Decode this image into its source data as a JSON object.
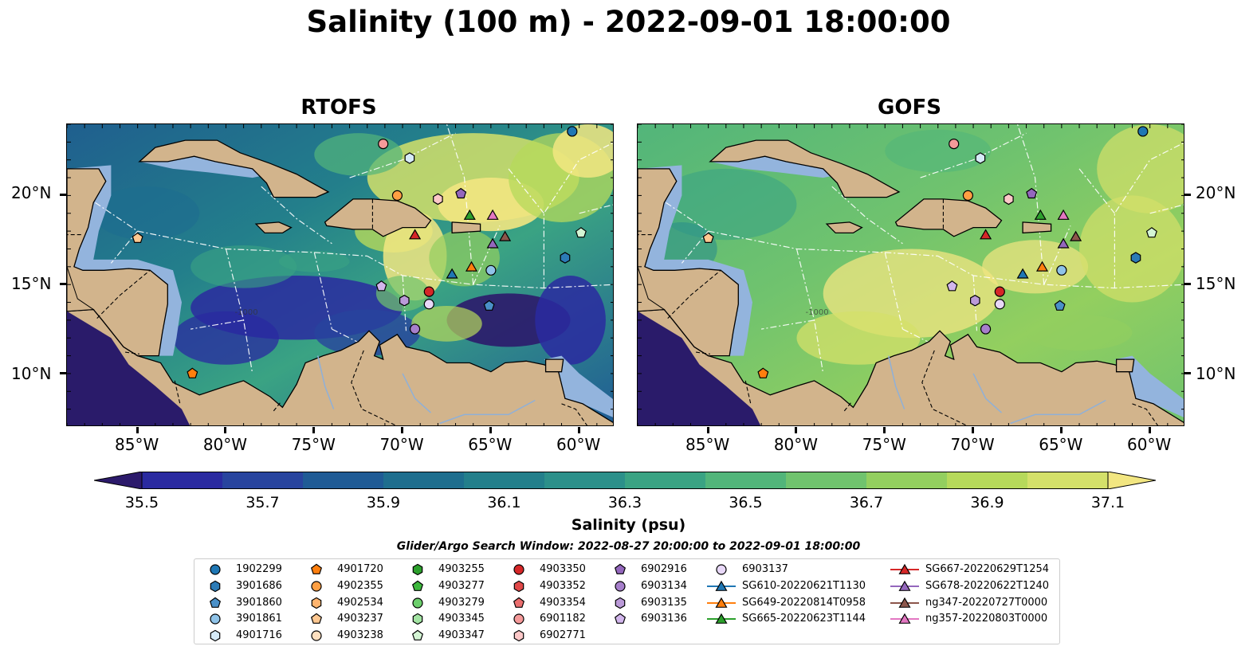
{
  "title": "Salinity (100 m) - 2022-09-01 18:00:00",
  "panels": [
    {
      "title": "RTOFS",
      "kind": "rtofs"
    },
    {
      "title": "GOFS",
      "kind": "gofs"
    }
  ],
  "lon_ticks": [
    "85°W",
    "80°W",
    "75°W",
    "70°W",
    "65°W",
    "60°W"
  ],
  "lat_ticks": [
    "20°N",
    "15°N",
    "10°N"
  ],
  "colorbar": {
    "title": "Salinity (psu)",
    "ticks": [
      "35.5",
      "35.7",
      "35.9",
      "36.1",
      "36.3",
      "36.5",
      "36.7",
      "36.9",
      "37.1"
    ],
    "colors": [
      "#2c1a6b",
      "#2a2aa0",
      "#28449e",
      "#1f5b95",
      "#1e6e8e",
      "#237f8b",
      "#2c908a",
      "#3aa383",
      "#52b57a",
      "#70c36e",
      "#93cf5f",
      "#b6d95b",
      "#d4e06a",
      "#f2e681"
    ]
  },
  "search_window": "Glider/Argo Search Window: 2022-08-27 20:00:00 to 2022-09-01 18:00:00",
  "legend": [
    {
      "label": "1902299",
      "marker": "circle",
      "color": "#1f77b4"
    },
    {
      "label": "3901686",
      "marker": "hexagon",
      "color": "#2c7bb6"
    },
    {
      "label": "3901860",
      "marker": "pentagon",
      "color": "#4a90c8"
    },
    {
      "label": "3901861",
      "marker": "circle",
      "color": "#8fc3e8"
    },
    {
      "label": "4901716",
      "marker": "hexagon",
      "color": "#d6ebf8"
    },
    {
      "label": "4901720",
      "marker": "pentagon",
      "color": "#ff7f0e"
    },
    {
      "label": "4902355",
      "marker": "circle",
      "color": "#ff9f43"
    },
    {
      "label": "4902534",
      "marker": "hexagon",
      "color": "#ffb46e"
    },
    {
      "label": "4903237",
      "marker": "pentagon",
      "color": "#ffc891"
    },
    {
      "label": "4903238",
      "marker": "circle",
      "color": "#ffe0c0"
    },
    {
      "label": "4903255",
      "marker": "hexagon",
      "color": "#2ca02c"
    },
    {
      "label": "4903277",
      "marker": "pentagon",
      "color": "#3db83d"
    },
    {
      "label": "4903279",
      "marker": "circle",
      "color": "#6ccf6c"
    },
    {
      "label": "4903345",
      "marker": "hexagon",
      "color": "#a3e4a3"
    },
    {
      "label": "4903347",
      "marker": "pentagon",
      "color": "#d4f5d4"
    },
    {
      "label": "4903350",
      "marker": "circle",
      "color": "#d62728"
    },
    {
      "label": "4903352",
      "marker": "hexagon",
      "color": "#e04848"
    },
    {
      "label": "4903354",
      "marker": "pentagon",
      "color": "#ea6e6e"
    },
    {
      "label": "6901182",
      "marker": "circle",
      "color": "#f59a9a"
    },
    {
      "label": "6902771",
      "marker": "hexagon",
      "color": "#fcc8c8"
    },
    {
      "label": "6902916",
      "marker": "pentagon",
      "color": "#9467bd"
    },
    {
      "label": "6903134",
      "marker": "circle",
      "color": "#a67fcb"
    },
    {
      "label": "6903135",
      "marker": "hexagon",
      "color": "#bb9ad8"
    },
    {
      "label": "6903136",
      "marker": "pentagon",
      "color": "#d2b6ec"
    },
    {
      "label": "6903137",
      "marker": "circle",
      "color": "#e8d8f8"
    },
    {
      "label": "SG610-20220621T1130",
      "marker": "triangle",
      "color": "#1f77b4"
    },
    {
      "label": "SG649-20220814T0958",
      "marker": "triangle",
      "color": "#ff7f0e"
    },
    {
      "label": "SG665-20220623T1144",
      "marker": "triangle",
      "color": "#2ca02c"
    },
    {
      "label": "SG667-20220629T1254",
      "marker": "triangle",
      "color": "#d62728"
    },
    {
      "label": "SG678-20220622T1240",
      "marker": "triangle",
      "color": "#9467bd"
    },
    {
      "label": "ng347-20220727T0000",
      "marker": "triangle",
      "color": "#8c564b"
    },
    {
      "label": "ng357-20220803T0000",
      "marker": "triangle",
      "color": "#e377c2"
    }
  ],
  "map_labels": {
    "contour": "-1000"
  },
  "platforms": [
    {
      "id": "1902299",
      "lon": -60.4,
      "lat": 23.6
    },
    {
      "id": "3901686",
      "lon": -60.8,
      "lat": 16.5
    },
    {
      "id": "3901860",
      "lon": -65.1,
      "lat": 13.8
    },
    {
      "id": "3901861",
      "lon": -65.0,
      "lat": 15.8
    },
    {
      "id": "4901716",
      "lon": -69.6,
      "lat": 22.1
    },
    {
      "id": "4901720",
      "lon": -81.9,
      "lat": 10.0
    },
    {
      "id": "4902355",
      "lon": -70.3,
      "lat": 20.0
    },
    {
      "id": "4903347",
      "lon": -59.9,
      "lat": 17.9
    },
    {
      "id": "4903350",
      "lon": -68.5,
      "lat": 14.6
    },
    {
      "id": "6901182",
      "lon": -71.1,
      "lat": 22.9
    },
    {
      "id": "6902771",
      "lon": -68.0,
      "lat": 19.8
    },
    {
      "id": "6902916",
      "lon": -66.7,
      "lat": 20.1
    },
    {
      "id": "6903134",
      "lon": -69.3,
      "lat": 12.5
    },
    {
      "id": "6903135",
      "lon": -69.9,
      "lat": 14.1
    },
    {
      "id": "6903136",
      "lon": -71.2,
      "lat": 14.9
    },
    {
      "id": "6903137",
      "lon": -68.5,
      "lat": 13.9
    },
    {
      "id": "4903237",
      "lon": -85.0,
      "lat": 17.6
    },
    {
      "id": "SG610-20220621T1130",
      "lon": -67.2,
      "lat": 15.6
    },
    {
      "id": "SG649-20220814T0958",
      "lon": -66.1,
      "lat": 16.0
    },
    {
      "id": "SG665-20220623T1144",
      "lon": -66.2,
      "lat": 18.9
    },
    {
      "id": "SG667-20220629T1254",
      "lon": -69.3,
      "lat": 17.8
    },
    {
      "id": "SG678-20220622T1240",
      "lon": -64.9,
      "lat": 17.3
    },
    {
      "id": "ng347-20220727T0000",
      "lon": -64.2,
      "lat": 17.7
    },
    {
      "id": "ng357-20220803T0000",
      "lon": -64.9,
      "lat": 18.9
    }
  ]
}
